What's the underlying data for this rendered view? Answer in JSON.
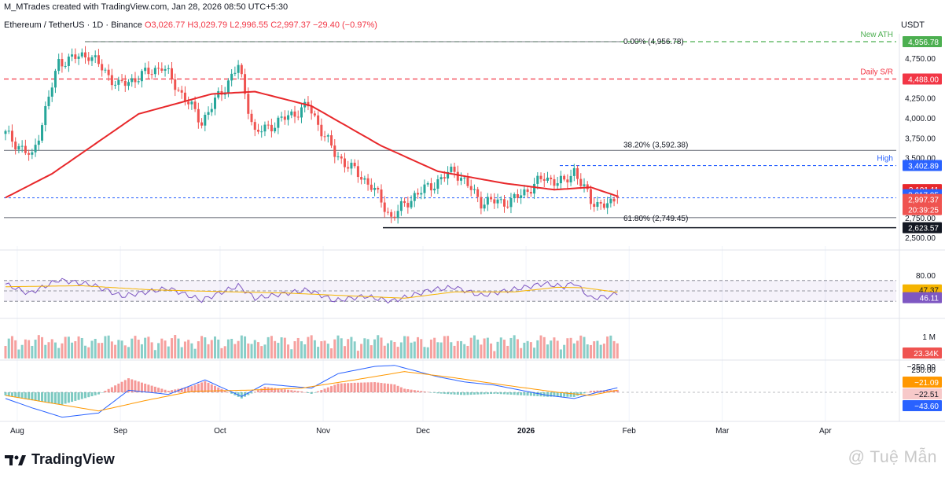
{
  "header": {
    "credit": "M_MTrades created with TradingView.com, Jan 28, 2026 08:50 UTC+5:30",
    "symbol": "Ethereum / TetherUS · 1D · Binance",
    "ohlc": "O3,026.77  H3,029.79  L2,996.55  C2,997.37  −29.40 (−0.97%)",
    "currency": "USDT"
  },
  "colors": {
    "up": "#26a69a",
    "down": "#ef5350",
    "ema": "#e8282b",
    "ath_line": "#4caf50",
    "sr_line": "#f23645",
    "high_line": "#2962ff",
    "rsi_line": "#7e57c2",
    "rsi_ma": "#f5b400",
    "macd_line": "#2962ff",
    "signal_line": "#ff9800"
  },
  "chart_data": [
    {
      "type": "candlestick",
      "title": "Ethereum / TetherUS · 1D · Binance",
      "x_axis_ticks": [
        "Aug",
        "Sep",
        "Oct",
        "Nov",
        "Dec",
        "2026",
        "Feb",
        "Mar",
        "Apr"
      ],
      "y_axis_ticks": [
        "4,750.00",
        "4,250.00",
        "4,000.00",
        "3,750.00",
        "3,500.00",
        "2,750.00",
        "2,500.00"
      ],
      "ylim": [
        2400,
        5100
      ],
      "last_ohlc": {
        "open": 3026.77,
        "high": 3029.79,
        "low": 2996.55,
        "close": 2997.37,
        "change": -29.4,
        "change_pct": -0.97
      },
      "close_path": [
        [
          "2025-07-28",
          3800
        ],
        [
          "2025-08-05",
          3500
        ],
        [
          "2025-08-13",
          4700
        ],
        [
          "2025-08-22",
          4800
        ],
        [
          "2025-08-31",
          4400
        ],
        [
          "2025-09-13",
          4650
        ],
        [
          "2025-09-25",
          3950
        ],
        [
          "2025-10-06",
          4650
        ],
        [
          "2025-10-11",
          3800
        ],
        [
          "2025-10-27",
          4150
        ],
        [
          "2025-11-04",
          3550
        ],
        [
          "2025-11-15",
          3150
        ],
        [
          "2025-11-21",
          2750
        ],
        [
          "2025-11-28",
          3030
        ],
        [
          "2025-12-03",
          3150
        ],
        [
          "2025-12-10",
          3350
        ],
        [
          "2025-12-18",
          2950
        ],
        [
          "2025-12-27",
          2950
        ],
        [
          "2026-01-06",
          3250
        ],
        [
          "2026-01-12",
          3180
        ],
        [
          "2026-01-15",
          3350
        ],
        [
          "2026-01-20",
          2950
        ],
        [
          "2026-01-26",
          2900
        ],
        [
          "2026-01-28",
          2997.37
        ]
      ],
      "series": [
        {
          "name": "EMA",
          "values": [
            [
              "2025-07-28",
              3000
            ],
            [
              "2025-08-11",
              3300
            ],
            [
              "2025-09-06",
              4050
            ],
            [
              "2025-09-28",
              4300
            ],
            [
              "2025-10-11",
              4330
            ],
            [
              "2025-10-28",
              4150
            ],
            [
              "2025-11-18",
              3650
            ],
            [
              "2025-12-05",
              3330
            ],
            [
              "2025-12-25",
              3180
            ],
            [
              "2026-01-09",
              3100
            ],
            [
              "2026-01-20",
              3130
            ],
            [
              "2026-01-28",
              3017.95
            ]
          ]
        }
      ],
      "levels": [
        {
          "label": "New ATH",
          "text": "0.00% (4,956.78)",
          "value": 4956.78,
          "price_tag": "4,956.78"
        },
        {
          "label": "Daily S/R",
          "value": 4488.0,
          "price_tag": "4,488.00"
        },
        {
          "text": "38.20% (3,592.38)",
          "value": 3592.38
        },
        {
          "label": "High",
          "value": 3402.89,
          "price_tag": "3,402.89"
        },
        {
          "text": "61.80% (2,749.45)",
          "value": 2749.45
        },
        {
          "value": 2623.57,
          "price_tag": "2,623.57"
        }
      ],
      "price_tags": [
        {
          "value": 3101.11,
          "text": "3,101.11"
        },
        {
          "value": 3017.95,
          "text": "3,017.95"
        },
        {
          "value": 2997.37,
          "text": "2,997.37",
          "countdown": "20:39:25"
        }
      ]
    },
    {
      "type": "line",
      "title": "RSI",
      "y_axis_ticks": [
        "80.00",
        "40.00"
      ],
      "ylim": [
        25,
        85
      ],
      "bands": [
        30,
        50,
        70
      ],
      "series": [
        {
          "name": "RSI",
          "last": 46.11,
          "values": [
            [
              "2025-07-28",
              63
            ],
            [
              "2025-08-04",
              45
            ],
            [
              "2025-08-13",
              71
            ],
            [
              "2025-08-23",
              62
            ],
            [
              "2025-09-01",
              40
            ],
            [
              "2025-09-15",
              55
            ],
            [
              "2025-09-25",
              32
            ],
            [
              "2025-10-06",
              60
            ],
            [
              "2025-10-11",
              36
            ],
            [
              "2025-10-27",
              52
            ],
            [
              "2025-11-04",
              31
            ],
            [
              "2025-11-13",
              40
            ],
            [
              "2025-11-21",
              30
            ],
            [
              "2025-12-03",
              52
            ],
            [
              "2025-12-10",
              57
            ],
            [
              "2025-12-18",
              41
            ],
            [
              "2026-01-06",
              64
            ],
            [
              "2026-01-12",
              58
            ],
            [
              "2026-01-15",
              66
            ],
            [
              "2026-01-20",
              36
            ],
            [
              "2026-01-26",
              40
            ],
            [
              "2026-01-28",
              46.11
            ]
          ]
        },
        {
          "name": "RSI MA",
          "last": 47.37,
          "values": [
            [
              "2025-07-28",
              58
            ],
            [
              "2025-08-20",
              60
            ],
            [
              "2025-09-10",
              52
            ],
            [
              "2025-10-05",
              48
            ],
            [
              "2025-10-20",
              46
            ],
            [
              "2025-11-10",
              40
            ],
            [
              "2025-11-25",
              36
            ],
            [
              "2025-12-10",
              48
            ],
            [
              "2025-12-28",
              48
            ],
            [
              "2026-01-10",
              57
            ],
            [
              "2026-01-18",
              56
            ],
            [
              "2026-01-28",
              47.37
            ]
          ]
        }
      ]
    },
    {
      "type": "bar",
      "title": "Volume",
      "y_axis_ticks": [
        "1 M"
      ],
      "last_value_label": "23.34K"
    },
    {
      "type": "line",
      "title": "MACD",
      "y_axis_ticks": [
        "250.00",
        "−250.00"
      ],
      "ylim": [
        -300,
        320
      ],
      "tags": [
        "−21.09",
        "−22.51",
        "−43.60"
      ],
      "series": [
        {
          "name": "MACD",
          "values": [
            [
              "2025-07-28",
              60
            ],
            [
              "2025-08-05",
              150
            ],
            [
              "2025-08-14",
              240
            ],
            [
              "2025-08-25",
              200
            ],
            [
              "2025-09-03",
              -20
            ],
            [
              "2025-09-15",
              20
            ],
            [
              "2025-09-26",
              -120
            ],
            [
              "2025-10-07",
              40
            ],
            [
              "2025-10-14",
              -80
            ],
            [
              "2025-10-28",
              -40
            ],
            [
              "2025-11-05",
              -180
            ],
            [
              "2025-11-16",
              -250
            ],
            [
              "2025-11-22",
              -260
            ],
            [
              "2025-12-05",
              -150
            ],
            [
              "2025-12-13",
              -100
            ],
            [
              "2025-12-22",
              -70
            ],
            [
              "2026-01-07",
              30
            ],
            [
              "2026-01-15",
              60
            ],
            [
              "2026-01-22",
              0
            ],
            [
              "2026-01-28",
              -43.6
            ]
          ]
        },
        {
          "name": "Signal",
          "values": [
            [
              "2025-07-28",
              30
            ],
            [
              "2025-08-10",
              100
            ],
            [
              "2025-08-25",
              180
            ],
            [
              "2025-09-08",
              80
            ],
            [
              "2025-09-22",
              -10
            ],
            [
              "2025-10-08",
              -20
            ],
            [
              "2025-10-25",
              -40
            ],
            [
              "2025-11-10",
              -120
            ],
            [
              "2025-11-25",
              -200
            ],
            [
              "2025-12-10",
              -140
            ],
            [
              "2025-12-25",
              -70
            ],
            [
              "2026-01-10",
              0
            ],
            [
              "2026-01-20",
              30
            ],
            [
              "2026-01-28",
              -21.09
            ]
          ]
        }
      ]
    }
  ],
  "brand": {
    "name": "TradingView"
  },
  "watermark": "@ Tuệ Mẫn"
}
